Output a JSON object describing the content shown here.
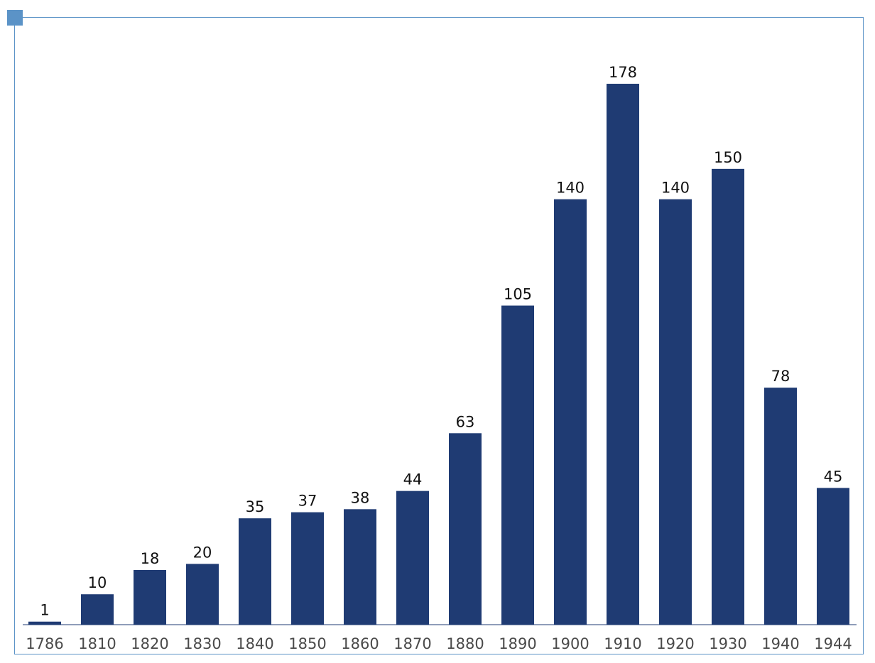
{
  "colors": {
    "bar": "#1f3b73",
    "frame": "#5b93c7"
  },
  "chart_data": {
    "type": "bar",
    "categories": [
      "1786",
      "1810",
      "1820",
      "1830",
      "1840",
      "1850",
      "1860",
      "1870",
      "1880",
      "1890",
      "1900",
      "1910",
      "1920",
      "1930",
      "1940",
      "1944"
    ],
    "values": [
      1,
      10,
      18,
      20,
      35,
      37,
      38,
      44,
      63,
      105,
      140,
      178,
      140,
      150,
      78,
      45
    ],
    "title": "",
    "xlabel": "",
    "ylabel": "",
    "ylim": [
      0,
      190
    ],
    "grid": false,
    "data_labels": true,
    "legend": "none"
  }
}
